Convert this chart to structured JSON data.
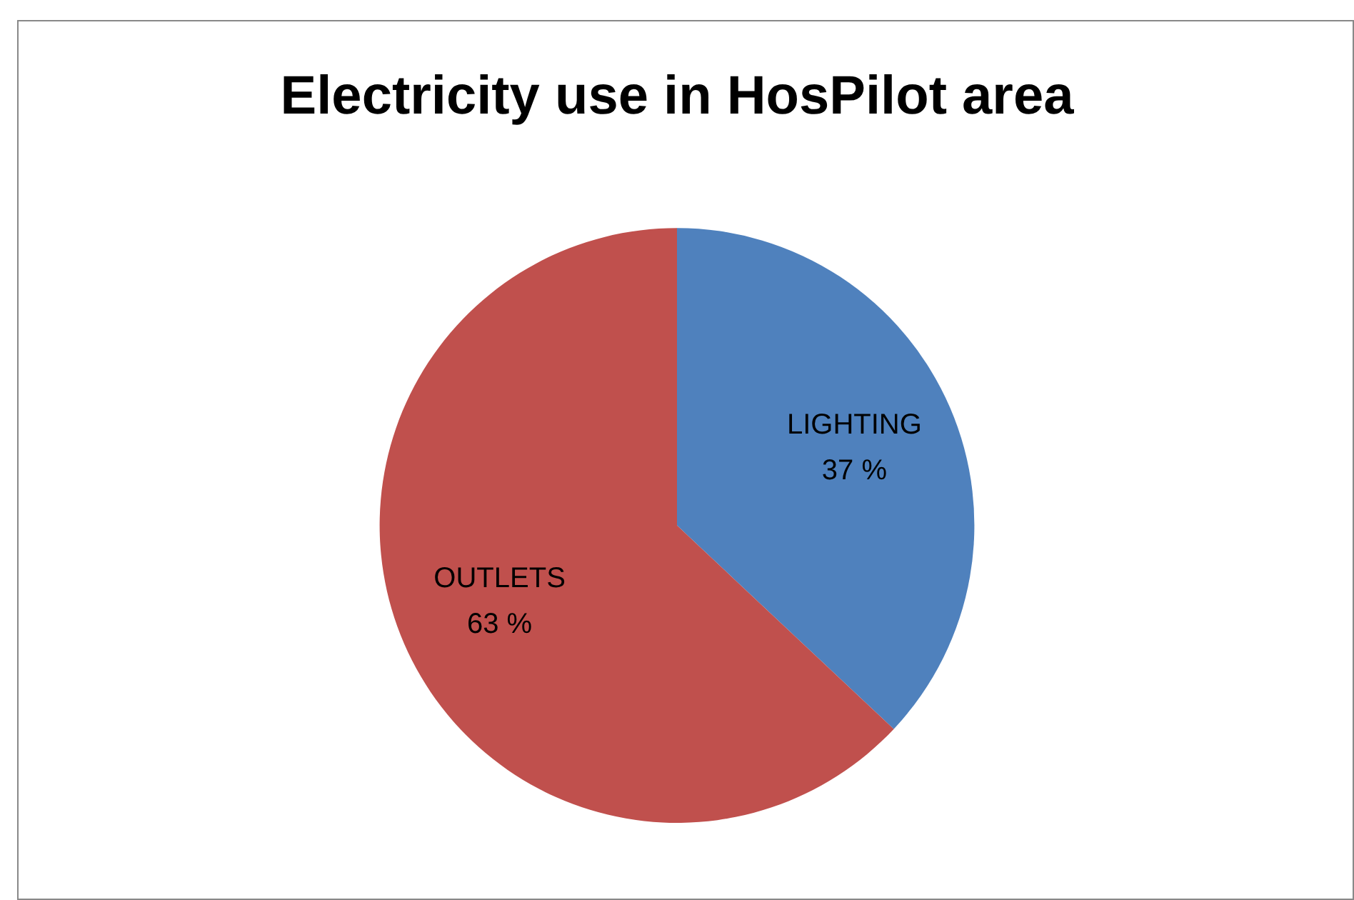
{
  "chart_data": {
    "type": "pie",
    "title": "Electricity use in HosPilot area",
    "categories": [
      "LIGHTING",
      "OUTLETS"
    ],
    "values": [
      37,
      63
    ],
    "value_labels": [
      "37 %",
      "63 %"
    ],
    "colors": [
      "#4f81bd",
      "#c0504d"
    ],
    "legend": false
  }
}
